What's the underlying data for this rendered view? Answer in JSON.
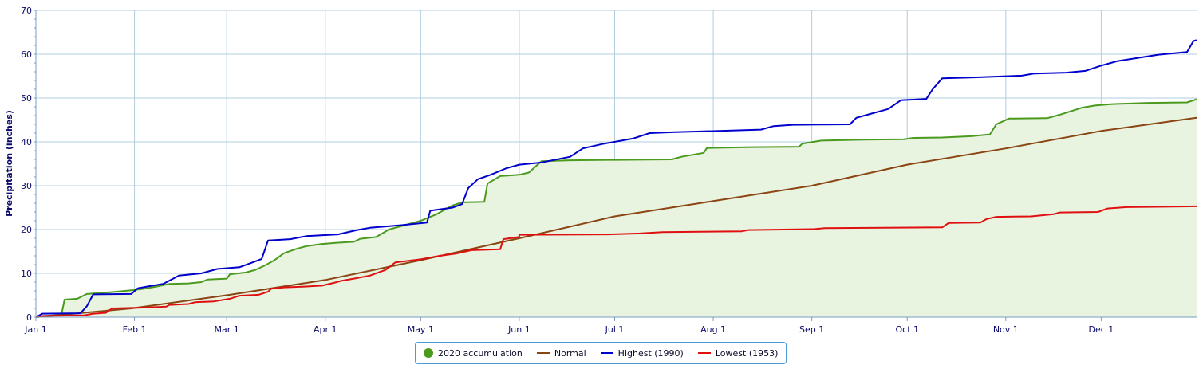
{
  "chart_data": {
    "type": "line",
    "title": "",
    "xlabel": "",
    "ylabel": "Precipitation (inches)",
    "ylim": [
      0,
      70
    ],
    "yticks": [
      0,
      10,
      20,
      30,
      40,
      50,
      60,
      70
    ],
    "xlim": [
      0,
      365
    ],
    "x_ticks": [
      {
        "day": 0,
        "label": "Jan 1"
      },
      {
        "day": 31,
        "label": "Feb 1"
      },
      {
        "day": 60,
        "label": "Mar 1"
      },
      {
        "day": 91,
        "label": "Apr 1"
      },
      {
        "day": 121,
        "label": "May 1"
      },
      {
        "day": 152,
        "label": "Jun 1"
      },
      {
        "day": 182,
        "label": "Jul 1"
      },
      {
        "day": 213,
        "label": "Aug 1"
      },
      {
        "day": 244,
        "label": "Sep 1"
      },
      {
        "day": 274,
        "label": "Oct 1"
      },
      {
        "day": 305,
        "label": "Nov 1"
      },
      {
        "day": 335,
        "label": "Dec 1"
      }
    ],
    "grid": true,
    "legend_position": "bottom-center",
    "series": [
      {
        "name": "2020 accumulation",
        "color": "#4a9a1e",
        "fill": "#e8f3e0",
        "legend_symbol": "dot",
        "points": [
          [
            0,
            0
          ],
          [
            3,
            0.3
          ],
          [
            8,
            0.5
          ],
          [
            9,
            4
          ],
          [
            13,
            4.2
          ],
          [
            16,
            5.3
          ],
          [
            20,
            5.5
          ],
          [
            25,
            5.8
          ],
          [
            28,
            6.0
          ],
          [
            31,
            6.2
          ],
          [
            34,
            6.5
          ],
          [
            38,
            7.0
          ],
          [
            42,
            7.6
          ],
          [
            48,
            7.7
          ],
          [
            52,
            8.0
          ],
          [
            54,
            8.6
          ],
          [
            60,
            8.8
          ],
          [
            61,
            9.8
          ],
          [
            66,
            10.2
          ],
          [
            69,
            10.8
          ],
          [
            72,
            11.8
          ],
          [
            75,
            13.0
          ],
          [
            78,
            14.6
          ],
          [
            82,
            15.6
          ],
          [
            85,
            16.2
          ],
          [
            90,
            16.7
          ],
          [
            95,
            17.0
          ],
          [
            100,
            17.2
          ],
          [
            102,
            17.9
          ],
          [
            107,
            18.3
          ],
          [
            111,
            20.0
          ],
          [
            116,
            21.0
          ],
          [
            121,
            22.0
          ],
          [
            126,
            23.5
          ],
          [
            131,
            25.5
          ],
          [
            134,
            26.2
          ],
          [
            141,
            26.3
          ],
          [
            142,
            30.5
          ],
          [
            146,
            32.2
          ],
          [
            152,
            32.5
          ],
          [
            155,
            33.0
          ],
          [
            159,
            35.6
          ],
          [
            168,
            35.8
          ],
          [
            182,
            35.9
          ],
          [
            200,
            36.0
          ],
          [
            203,
            36.6
          ],
          [
            210,
            37.5
          ],
          [
            211,
            38.6
          ],
          [
            225,
            38.8
          ],
          [
            240,
            38.9
          ],
          [
            241,
            39.6
          ],
          [
            247,
            40.3
          ],
          [
            260,
            40.5
          ],
          [
            273,
            40.6
          ],
          [
            276,
            40.9
          ],
          [
            285,
            41.0
          ],
          [
            294,
            41.3
          ],
          [
            300,
            41.7
          ],
          [
            302,
            44.0
          ],
          [
            306,
            45.3
          ],
          [
            318,
            45.4
          ],
          [
            322,
            46.2
          ],
          [
            329,
            47.8
          ],
          [
            333,
            48.3
          ],
          [
            338,
            48.6
          ],
          [
            350,
            48.9
          ],
          [
            362,
            49.0
          ],
          [
            365,
            49.7
          ]
        ]
      },
      {
        "name": "Normal",
        "color": "#8b4513",
        "legend_symbol": "line",
        "points": [
          [
            0,
            0
          ],
          [
            30,
            2.0
          ],
          [
            60,
            5.0
          ],
          [
            91,
            8.5
          ],
          [
            121,
            13.0
          ],
          [
            152,
            18.0
          ],
          [
            182,
            23.0
          ],
          [
            213,
            26.5
          ],
          [
            244,
            30.0
          ],
          [
            274,
            34.8
          ],
          [
            305,
            38.5
          ],
          [
            335,
            42.5
          ],
          [
            365,
            45.5
          ]
        ]
      },
      {
        "name": "Highest (1990)",
        "color": "#0000cc",
        "legend_symbol": "line",
        "points": [
          [
            0,
            0
          ],
          [
            2,
            0.8
          ],
          [
            14,
            0.9
          ],
          [
            16,
            2.5
          ],
          [
            18,
            5.2
          ],
          [
            30,
            5.3
          ],
          [
            32,
            6.6
          ],
          [
            36,
            7.1
          ],
          [
            40,
            7.6
          ],
          [
            45,
            9.5
          ],
          [
            52,
            10.0
          ],
          [
            57,
            11.0
          ],
          [
            64,
            11.4
          ],
          [
            67,
            12.2
          ],
          [
            71,
            13.3
          ],
          [
            73,
            17.5
          ],
          [
            80,
            17.8
          ],
          [
            85,
            18.5
          ],
          [
            95,
            18.9
          ],
          [
            101,
            19.9
          ],
          [
            105,
            20.4
          ],
          [
            115,
            21.0
          ],
          [
            119,
            21.3
          ],
          [
            123,
            21.6
          ],
          [
            124,
            24.3
          ],
          [
            131,
            25.0
          ],
          [
            134,
            25.8
          ],
          [
            136,
            29.5
          ],
          [
            139,
            31.5
          ],
          [
            143,
            32.5
          ],
          [
            148,
            34.0
          ],
          [
            152,
            34.8
          ],
          [
            159,
            35.3
          ],
          [
            168,
            36.6
          ],
          [
            172,
            38.5
          ],
          [
            178,
            39.5
          ],
          [
            188,
            40.8
          ],
          [
            193,
            42.0
          ],
          [
            200,
            42.2
          ],
          [
            210,
            42.4
          ],
          [
            228,
            42.8
          ],
          [
            232,
            43.6
          ],
          [
            238,
            43.9
          ],
          [
            256,
            44.0
          ],
          [
            258,
            45.5
          ],
          [
            262,
            46.3
          ],
          [
            268,
            47.5
          ],
          [
            272,
            49.5
          ],
          [
            280,
            49.8
          ],
          [
            282,
            52.0
          ],
          [
            285,
            54.5
          ],
          [
            295,
            54.7
          ],
          [
            310,
            55.1
          ],
          [
            314,
            55.6
          ],
          [
            324,
            55.8
          ],
          [
            330,
            56.2
          ],
          [
            335,
            57.4
          ],
          [
            340,
            58.4
          ],
          [
            353,
            59.9
          ],
          [
            362,
            60.5
          ],
          [
            364,
            63.0
          ],
          [
            365,
            63.2
          ]
        ]
      },
      {
        "name": "Lowest (1953)",
        "color": "#e01010",
        "legend_symbol": "line",
        "points": [
          [
            0,
            0
          ],
          [
            2,
            0.3
          ],
          [
            15,
            0.4
          ],
          [
            18,
            0.8
          ],
          [
            22,
            1.0
          ],
          [
            24,
            2.0
          ],
          [
            35,
            2.2
          ],
          [
            41,
            2.4
          ],
          [
            42,
            2.8
          ],
          [
            48,
            3.0
          ],
          [
            50,
            3.4
          ],
          [
            56,
            3.6
          ],
          [
            61,
            4.2
          ],
          [
            64,
            4.9
          ],
          [
            70,
            5.1
          ],
          [
            73,
            5.8
          ],
          [
            74,
            6.5
          ],
          [
            78,
            6.8
          ],
          [
            85,
            7.0
          ],
          [
            90,
            7.2
          ],
          [
            94,
            7.9
          ],
          [
            96,
            8.3
          ],
          [
            100,
            8.8
          ],
          [
            105,
            9.5
          ],
          [
            110,
            10.8
          ],
          [
            113,
            12.5
          ],
          [
            121,
            13.2
          ],
          [
            127,
            14.0
          ],
          [
            132,
            14.5
          ],
          [
            137,
            15.3
          ],
          [
            146,
            15.5
          ],
          [
            147,
            17.8
          ],
          [
            152,
            18.3
          ],
          [
            152,
            18.8
          ],
          [
            180,
            18.9
          ],
          [
            190,
            19.1
          ],
          [
            197,
            19.4
          ],
          [
            222,
            19.6
          ],
          [
            224,
            19.9
          ],
          [
            245,
            20.1
          ],
          [
            248,
            20.3
          ],
          [
            285,
            20.5
          ],
          [
            287,
            21.5
          ],
          [
            297,
            21.6
          ],
          [
            299,
            22.4
          ],
          [
            302,
            22.9
          ],
          [
            313,
            23.0
          ],
          [
            320,
            23.5
          ],
          [
            322,
            23.9
          ],
          [
            334,
            24.0
          ],
          [
            337,
            24.8
          ],
          [
            343,
            25.1
          ],
          [
            355,
            25.2
          ],
          [
            365,
            25.3
          ]
        ]
      }
    ]
  }
}
